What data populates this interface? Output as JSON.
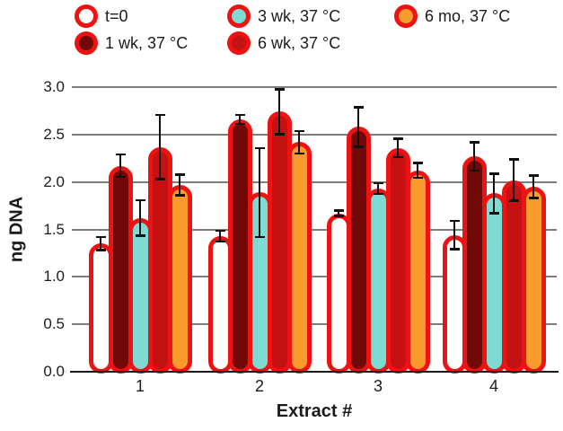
{
  "figure_type": "bar-chart-figure",
  "chart_data": {
    "type": "bar",
    "title": "",
    "xlabel": "Extract #",
    "ylabel": "ng DNA",
    "categories": [
      "1",
      "2",
      "3",
      "4"
    ],
    "ylim": [
      0,
      3.0
    ],
    "ytick_step": 0.5,
    "yticks": [
      "0.0",
      "0.5",
      "1.0",
      "1.5",
      "2.0",
      "2.5",
      "3.0"
    ],
    "grid": "horizontal-gray",
    "legend_position": "top",
    "bar_outline_color": "#ee1313",
    "grid_color": "#7d7d7d",
    "axis_color": "#1d1a1b",
    "error_bar_color": "#111111",
    "series": [
      {
        "name": "t=0",
        "fill": "#ffffff",
        "values": [
          1.35,
          1.43,
          1.67,
          1.44
        ],
        "errors": [
          0.08,
          0.07,
          0.04,
          0.16
        ]
      },
      {
        "name": "1 wk, 37 °C",
        "fill": "#720909",
        "values": [
          2.17,
          2.66,
          2.58,
          2.27
        ],
        "errors": [
          0.13,
          0.06,
          0.22,
          0.16
        ]
      },
      {
        "name": "3 wk, 37 °C",
        "fill": "#7ddbd4",
        "values": [
          1.62,
          1.89,
          1.93,
          1.88
        ],
        "errors": [
          0.2,
          0.48,
          0.07,
          0.22
        ]
      },
      {
        "name": "6 wk, 37 °C",
        "fill": "#c41111",
        "values": [
          2.37,
          2.74,
          2.36,
          2.02
        ],
        "errors": [
          0.35,
          0.25,
          0.11,
          0.23
        ]
      },
      {
        "name": "6 mo, 37 °C",
        "fill": "#f89a2c",
        "values": [
          1.97,
          2.42,
          2.12,
          1.95
        ],
        "errors": [
          0.12,
          0.13,
          0.09,
          0.13
        ]
      }
    ]
  }
}
